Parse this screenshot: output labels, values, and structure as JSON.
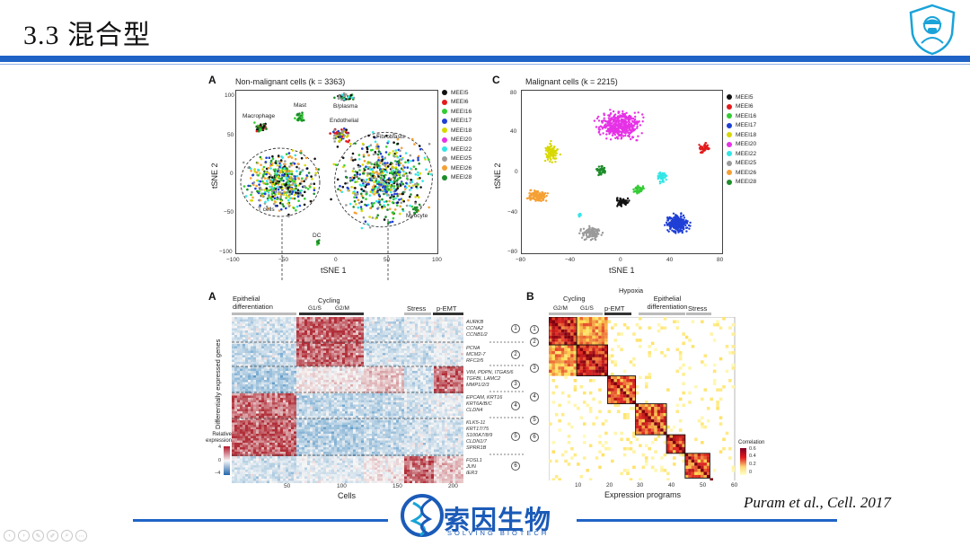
{
  "slide": {
    "title": "3.3 混合型",
    "citation": "Puram et al., Cell. 2017",
    "brand": {
      "name": "索因生物",
      "subtitle": "SOLVING BIOTECH",
      "primary_color": "#1f63c6"
    },
    "controls": [
      "prev-icon",
      "next-icon",
      "edit-icon",
      "pen-icon",
      "zoom-icon",
      "more-icon"
    ]
  },
  "figure_top": {
    "panel_a": {
      "letter": "A",
      "title": "Non-malignant cells (k = 3363)",
      "xlabel": "tSNE 1",
      "ylabel": "tSNE 2",
      "xticks": [
        "−100",
        "−50",
        "0",
        "50",
        "100"
      ],
      "yticks": [
        "100",
        "50",
        "0",
        "−50",
        "−100"
      ],
      "clusters": [
        "Macrophage",
        "Mast",
        "B/plasma",
        "Endothelial",
        "Fibroblasts",
        "T cells",
        "Myocyte",
        "DC"
      ]
    },
    "panel_c": {
      "letter": "C",
      "title": "Malignant cells (k = 2215)",
      "xlabel": "tSNE 1",
      "ylabel": "tSNE 2",
      "xticks": [
        "−80",
        "−40",
        "0",
        "40",
        "80"
      ],
      "yticks": [
        "80",
        "40",
        "0",
        "−40",
        "−80"
      ]
    },
    "legend": [
      {
        "label": "MEEI5",
        "color": "#111111"
      },
      {
        "label": "MEEI6",
        "color": "#e31a1c"
      },
      {
        "label": "MEEI16",
        "color": "#33cc33"
      },
      {
        "label": "MEEI17",
        "color": "#1f3fd6"
      },
      {
        "label": "MEEI18",
        "color": "#d8d800"
      },
      {
        "label": "MEEI20",
        "color": "#e632e6"
      },
      {
        "label": "MEEI22",
        "color": "#33e6e6"
      },
      {
        "label": "MEEI25",
        "color": "#9a9a9a"
      },
      {
        "label": "MEEI26",
        "color": "#f5a034"
      },
      {
        "label": "MEEI28",
        "color": "#1e8c2a"
      }
    ]
  },
  "figure_bottom": {
    "panel_a": {
      "letter": "A",
      "column_groups": [
        "Epithelial differentiation",
        "Cycling",
        "G1/S",
        "G2/M",
        "Stress",
        "p-EMT"
      ],
      "ylabel": "Differentially expressed genes",
      "xlabel": "Cells",
      "xticks": [
        "50",
        "100",
        "150",
        "200"
      ],
      "colorbar_title": "Relative expression",
      "colorbar_ticks": [
        "4",
        "0",
        "−4"
      ],
      "gene_groups": [
        {
          "num": "1",
          "genes": [
            "AURKB",
            "CCNA2",
            "CCNB1/2"
          ]
        },
        {
          "num": "2",
          "genes": [
            "PCNA",
            "MCM2-7",
            "RFC2/5"
          ]
        },
        {
          "num": "3",
          "genes": [
            "VIM, PDPN, ITGA5/6",
            "TGFBI, LAMC2",
            "MMP1/2/3"
          ]
        },
        {
          "num": "4",
          "genes": [
            "EPCAM, KRT16",
            "KRT6A/B/C",
            "CLDN4"
          ]
        },
        {
          "num": "5",
          "genes": [
            "KLK5-11",
            "KRT17/75",
            "S100A7/8/9",
            "CLDN1/7",
            "SPRR1B"
          ]
        },
        {
          "num": "6",
          "genes": [
            "FOSL1",
            "JUN",
            "IER3"
          ]
        }
      ]
    },
    "panel_b": {
      "letter": "B",
      "column_groups": [
        "Cycling",
        "G2/M",
        "G1/S",
        "p-EMT",
        "Hypoxia",
        "Epithelial differentiation",
        "Stress"
      ],
      "xlabel": "Expression programs",
      "xticks": [
        "10",
        "20",
        "30",
        "40",
        "50",
        "60"
      ],
      "colorbar_title": "Correlation",
      "colorbar_ticks": [
        "0.6",
        "0.4",
        "0.2",
        "0"
      ],
      "modules": [
        "1",
        "2",
        "3",
        "4",
        "5",
        "6"
      ]
    }
  }
}
